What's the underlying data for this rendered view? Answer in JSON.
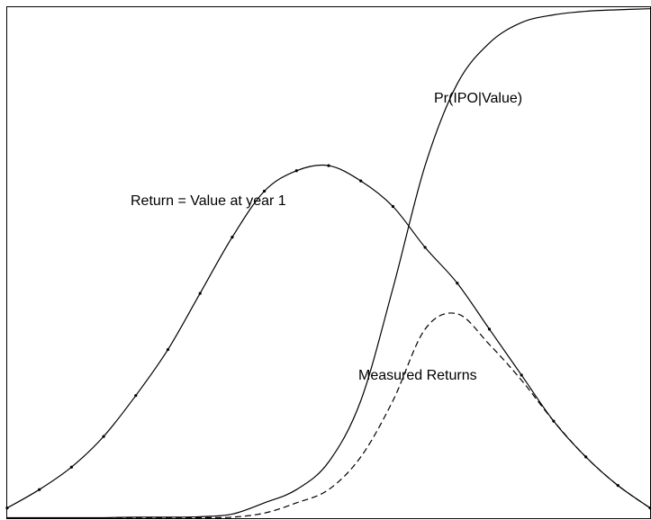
{
  "chart_data": {
    "type": "line",
    "x": [
      0,
      0.05,
      0.1,
      0.15,
      0.2,
      0.25,
      0.3,
      0.35,
      0.4,
      0.45,
      0.5,
      0.55,
      0.6,
      0.65,
      0.7,
      0.75,
      0.8,
      0.85,
      0.9,
      0.95,
      1
    ],
    "xlim": [
      0,
      1
    ],
    "ylim": [
      0,
      1
    ],
    "series": [
      {
        "name": "Return = Value at year 1",
        "color": "#000000",
        "style": "dotted-markers",
        "values": [
          0.02,
          0.056,
          0.1,
          0.16,
          0.24,
          0.33,
          0.44,
          0.55,
          0.64,
          0.68,
          0.69,
          0.66,
          0.61,
          0.53,
          0.46,
          0.37,
          0.28,
          0.19,
          0.12,
          0.064,
          0.02
        ]
      },
      {
        "name": "Pr(IPO|Value)",
        "color": "#000000",
        "style": "solid",
        "values": [
          0.001,
          0.001,
          0.001,
          0.001,
          0.002,
          0.002,
          0.003,
          0.008,
          0.03,
          0.056,
          0.11,
          0.23,
          0.45,
          0.69,
          0.85,
          0.93,
          0.97,
          0.985,
          0.992,
          0.995,
          0.997
        ]
      },
      {
        "name": "Measured Returns",
        "color": "#000000",
        "style": "dashed",
        "values": [
          0,
          0,
          0,
          0,
          0,
          0,
          0.001,
          0.002,
          0.01,
          0.03,
          0.056,
          0.12,
          0.23,
          0.37,
          0.4,
          0.34,
          0.27,
          0.19,
          0.12,
          0.064,
          0.02
        ]
      }
    ]
  }
}
